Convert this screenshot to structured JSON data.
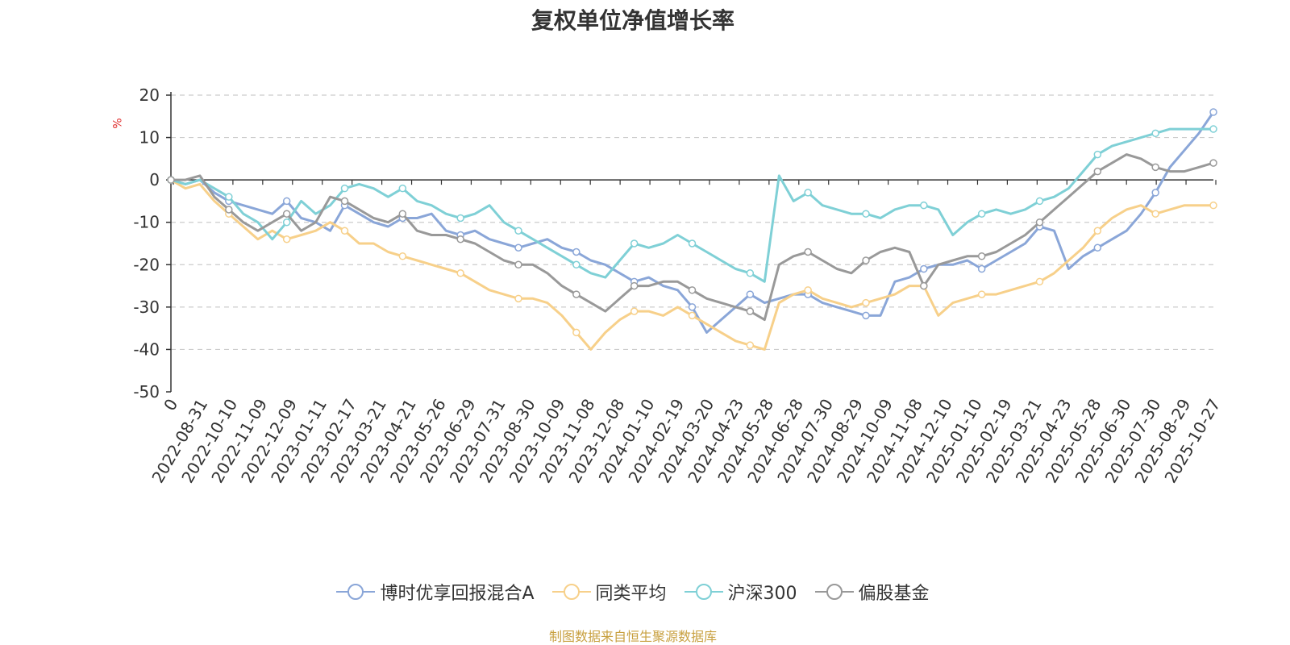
{
  "chart_data": {
    "type": "line",
    "title": "复权单位净值增长率",
    "ylabel": "%",
    "ylim": [
      -50,
      20
    ],
    "yticks": [
      20,
      10,
      0,
      -10,
      -20,
      -30,
      -40,
      -50
    ],
    "x_tick_labels": [
      "0",
      "2022-08-31",
      "2022-10-10",
      "2022-11-09",
      "2022-12-09",
      "2023-01-11",
      "2023-02-17",
      "2023-03-21",
      "2023-04-21",
      "2023-05-26",
      "2023-06-29",
      "2023-07-31",
      "2023-08-30",
      "2023-10-09",
      "2023-11-08",
      "2023-12-08",
      "2024-01-10",
      "2024-02-19",
      "2024-03-20",
      "2024-04-23",
      "2024-05-28",
      "2024-06-28",
      "2024-07-30",
      "2024-08-29",
      "2024-10-09",
      "2024-11-08",
      "2024-12-10",
      "2025-01-10",
      "2025-02-19",
      "2025-03-21",
      "2025-04-23",
      "2025-05-28",
      "2025-06-30",
      "2025-07-30",
      "2025-08-29",
      "2025-10-27"
    ],
    "x_index": [
      0,
      1,
      2,
      3,
      4,
      5,
      6,
      7,
      8,
      9,
      10,
      11,
      12,
      13,
      14,
      15,
      16,
      17,
      18,
      19,
      20,
      21,
      22,
      23,
      24,
      25,
      26,
      27,
      28,
      29,
      30,
      31,
      32,
      33,
      34,
      35,
      36,
      37,
      38,
      39,
      40,
      41,
      42,
      43,
      44,
      45,
      46,
      47,
      48,
      49,
      50,
      51,
      52,
      53,
      54,
      55,
      56,
      57,
      58,
      59,
      60,
      61,
      62,
      63,
      64,
      65,
      66,
      67,
      68,
      69,
      70,
      71,
      72
    ],
    "series": [
      {
        "name": "博时优享回报混合A",
        "color": "#8aa6d8",
        "values": [
          0,
          -1,
          0,
          -3,
          -5,
          -6,
          -7,
          -8,
          -5,
          -9,
          -10,
          -12,
          -6,
          -8,
          -10,
          -11,
          -9,
          -9,
          -8,
          -12,
          -13,
          -12,
          -14,
          -15,
          -16,
          -15,
          -14,
          -16,
          -17,
          -19,
          -20,
          -22,
          -24,
          -23,
          -25,
          -26,
          -30,
          -36,
          -33,
          -30,
          -27,
          -29,
          -28,
          -27,
          -27,
          -29,
          -30,
          -31,
          -32,
          -32,
          -24,
          -23,
          -21,
          -20,
          -20,
          -19,
          -21,
          -19,
          -17,
          -15,
          -11,
          -12,
          -21,
          -18,
          -16,
          -14,
          -12,
          -8,
          -3,
          3,
          7,
          11,
          16
        ]
      },
      {
        "name": "同类平均",
        "color": "#f7d08a",
        "values": [
          0,
          -2,
          -1,
          -5,
          -8,
          -11,
          -14,
          -12,
          -14,
          -13,
          -12,
          -10,
          -12,
          -15,
          -15,
          -17,
          -18,
          -19,
          -20,
          -21,
          -22,
          -24,
          -26,
          -27,
          -28,
          -28,
          -29,
          -32,
          -36,
          -40,
          -36,
          -33,
          -31,
          -31,
          -32,
          -30,
          -32,
          -34,
          -36,
          -38,
          -39,
          -40,
          -29,
          -27,
          -26,
          -28,
          -29,
          -30,
          -29,
          -28,
          -27,
          -25,
          -25,
          -32,
          -29,
          -28,
          -27,
          -27,
          -26,
          -25,
          -24,
          -22,
          -19,
          -16,
          -12,
          -9,
          -7,
          -6,
          -8,
          -7,
          -6,
          -6,
          -6
        ]
      },
      {
        "name": "沪深300",
        "color": "#7fd0d6",
        "values": [
          0,
          -1,
          0,
          -2,
          -4,
          -8,
          -10,
          -14,
          -10,
          -5,
          -8,
          -6,
          -2,
          -1,
          -2,
          -4,
          -2,
          -5,
          -6,
          -8,
          -9,
          -8,
          -6,
          -10,
          -12,
          -14,
          -16,
          -18,
          -20,
          -22,
          -23,
          -19,
          -15,
          -16,
          -15,
          -13,
          -15,
          -17,
          -19,
          -21,
          -22,
          -24,
          1,
          -5,
          -3,
          -6,
          -7,
          -8,
          -8,
          -9,
          -7,
          -6,
          -6,
          -7,
          -13,
          -10,
          -8,
          -7,
          -8,
          -7,
          -5,
          -4,
          -2,
          2,
          6,
          8,
          9,
          10,
          11,
          12,
          12,
          12,
          12
        ]
      },
      {
        "name": "偏股基金",
        "color": "#999999",
        "values": [
          0,
          0,
          1,
          -4,
          -7,
          -10,
          -12,
          -10,
          -8,
          -12,
          -10,
          -4,
          -5,
          -7,
          -9,
          -10,
          -8,
          -12,
          -13,
          -13,
          -14,
          -15,
          -17,
          -19,
          -20,
          -20,
          -22,
          -25,
          -27,
          -29,
          -31,
          -28,
          -25,
          -25,
          -24,
          -24,
          -26,
          -28,
          -29,
          -30,
          -31,
          -33,
          -20,
          -18,
          -17,
          -19,
          -21,
          -22,
          -19,
          -17,
          -16,
          -17,
          -25,
          -20,
          -19,
          -18,
          -18,
          -17,
          -15,
          -13,
          -10,
          -7,
          -4,
          -1,
          2,
          4,
          6,
          5,
          3,
          2,
          2,
          3,
          4
        ]
      }
    ]
  },
  "footer": "制图数据来自恒生聚源数据库"
}
